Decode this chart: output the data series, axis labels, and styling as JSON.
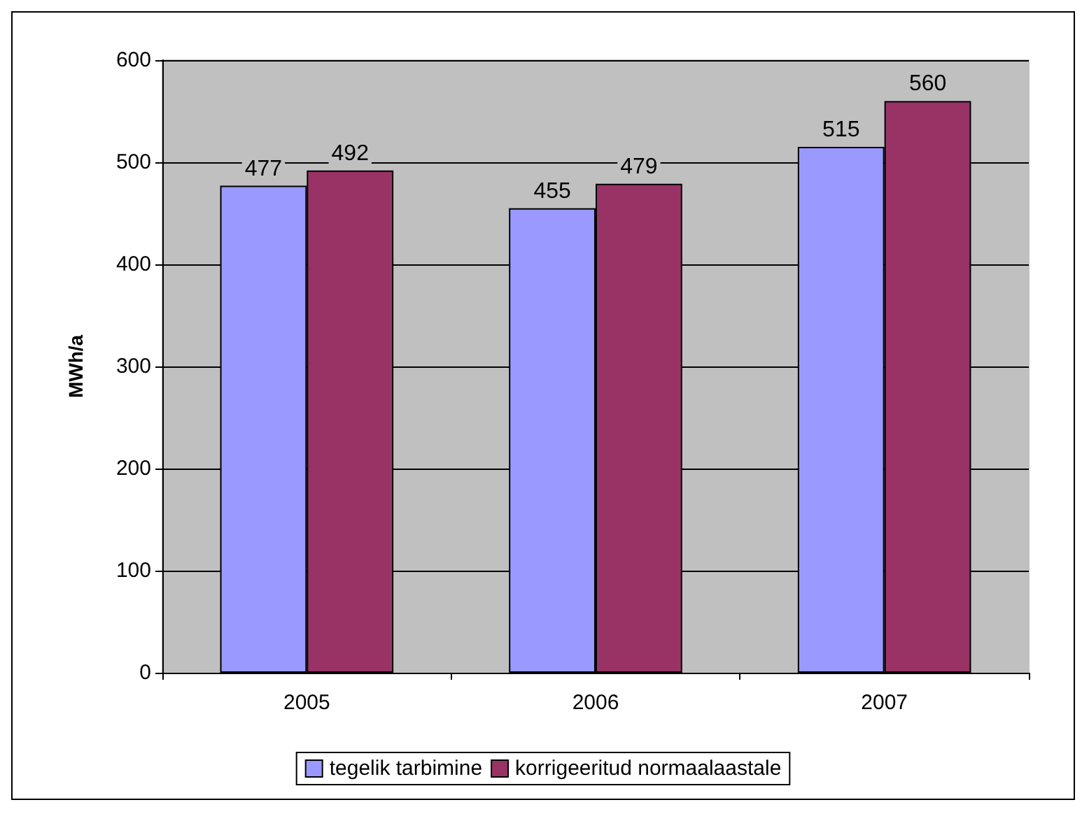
{
  "chart_data": {
    "type": "bar",
    "ylabel": "MWh/a",
    "categories": [
      "2005",
      "2006",
      "2007"
    ],
    "series": [
      {
        "name": "tegelik tarbimine",
        "color": "#9999ff",
        "values": [
          477,
          455,
          515
        ]
      },
      {
        "name": "korrigeeritud normaalaastale",
        "color": "#993366",
        "values": [
          492,
          479,
          560
        ]
      }
    ],
    "ylim": [
      0,
      600
    ],
    "yticks": [
      0,
      100,
      200,
      300,
      400,
      500,
      600
    ],
    "grid": "y",
    "legend": "bottom",
    "data_labels": true
  }
}
